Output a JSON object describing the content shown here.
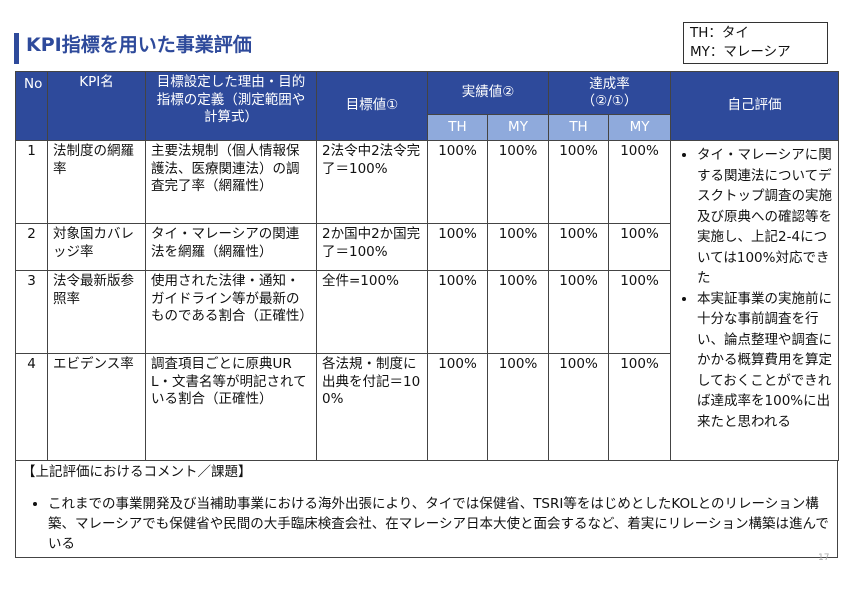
{
  "header": {
    "title": "KPI指標を用いた事業評価",
    "legend": [
      "TH：タイ",
      "MY：マレーシア"
    ]
  },
  "table": {
    "columns": {
      "no": "No",
      "kpi": "KPI名",
      "reason": [
        "目標設定した理由・目的",
        "指標の定義（測定範囲や計算式）"
      ],
      "target": "目標値①",
      "actual": "実績値②",
      "rate": [
        "達成率",
        "（②/①）"
      ],
      "self": "自己評価",
      "sub": [
        "TH",
        "MY",
        "TH",
        "MY"
      ]
    },
    "rows": [
      [
        "1",
        "法制度の網羅率",
        "主要法規制（個人情報保護法、医療関連法）の調査完了率（網羅性）",
        "2法令中2法令完了＝100%",
        "100%",
        "100%",
        "100%",
        "100%"
      ],
      [
        "2",
        "対象国カバレッジ率",
        "タイ・マレーシアの関連法を網羅（網羅性）",
        "2か国中2か国完了＝100%",
        "100%",
        "100%",
        "100%",
        "100%"
      ],
      [
        "3",
        "法令最新版参照率",
        "使用された法律・通知・ガイドライン等が最新のものである割合（正確性）",
        "全件=100%",
        "100%",
        "100%",
        "100%",
        "100%"
      ],
      [
        "4",
        "エビデンス率",
        "調査項目ごとに原典URL・文書名等が明記されている割合（正確性）",
        "各法規・制度に出典を付記＝100%",
        "100%",
        "100%",
        "100%",
        "100%"
      ]
    ],
    "self_evaluation": [
      "タイ・マレーシアに関する関連法についてデスクトップ調査の実施及び原典への確認等を実施し、上記2-4については100%対応できた",
      "本実証事業の実施前に十分な事前調査を行い、論点整理や調査にかかる概算費用を算定しておくことができれば達成率を100%に出来たと思われる"
    ]
  },
  "comment": {
    "heading": "【上記評価におけるコメント／課題】",
    "items": [
      "これまでの事業開発及び当補助事業における海外出張により、タイでは保健省、TSRI等をはじめとしたKOLとのリレーション構築、マレーシアでも保健省や民間の大手臨床検査会社、在マレーシア日本大使と面会するなど、着実にリレーション構築は進んでいる"
    ]
  },
  "page_number": "17"
}
